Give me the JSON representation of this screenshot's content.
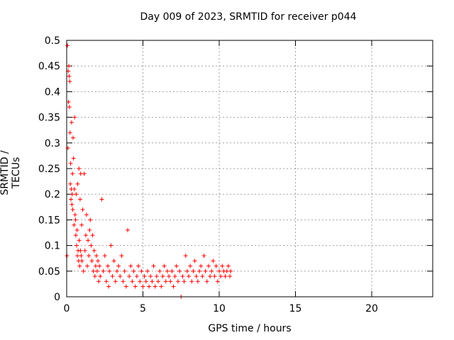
{
  "chart_data": {
    "type": "scatter",
    "title": "Day 009 of 2023, SRMTID for receiver p044",
    "xlabel": "GPS time / hours",
    "ylabel": "SRMTID / TECUs",
    "xlim": [
      0,
      24
    ],
    "ylim": [
      0,
      0.5
    ],
    "xticks": [
      0,
      5,
      10,
      15,
      20
    ],
    "yticks": [
      0,
      0.05,
      0.1,
      0.15,
      0.2,
      0.25,
      0.3,
      0.35,
      0.4,
      0.45,
      0.5
    ],
    "grid": true,
    "marker": "+",
    "color": "#ff0000",
    "series": [
      {
        "name": "SRMTID",
        "x": [
          0.02,
          0.05,
          0.08,
          0.1,
          0.12,
          0.14,
          0.16,
          0.18,
          0.2,
          0.22,
          0.24,
          0.26,
          0.28,
          0.3,
          0.32,
          0.34,
          0.36,
          0.38,
          0.4,
          0.42,
          0.45,
          0.48,
          0.5,
          0.52,
          0.55,
          0.58,
          0.6,
          0.62,
          0.65,
          0.68,
          0.7,
          0.72,
          0.75,
          0.78,
          0.8,
          0.82,
          0.85,
          0.88,
          0.9,
          0.92,
          0.95,
          0.98,
          1.0,
          1.05,
          1.1,
          1.15,
          1.2,
          1.25,
          1.3,
          1.35,
          1.4,
          1.45,
          1.5,
          1.55,
          1.6,
          1.65,
          1.7,
          1.75,
          1.8,
          1.85,
          1.9,
          1.95,
          2.0,
          2.05,
          2.1,
          2.15,
          2.2,
          2.3,
          2.4,
          2.5,
          2.6,
          2.7,
          2.75,
          2.8,
          2.9,
          3.0,
          3.1,
          3.2,
          3.3,
          3.4,
          3.5,
          3.6,
          3.7,
          3.8,
          3.9,
          4.0,
          4.1,
          4.2,
          4.3,
          4.4,
          4.5,
          4.6,
          4.7,
          4.8,
          4.9,
          5.0,
          5.1,
          5.2,
          5.3,
          5.4,
          5.5,
          5.6,
          5.7,
          5.8,
          5.9,
          6.0,
          6.1,
          6.2,
          6.3,
          6.4,
          6.5,
          6.6,
          6.7,
          6.8,
          6.9,
          7.0,
          7.1,
          7.2,
          7.3,
          7.4,
          7.5,
          7.6,
          7.7,
          7.8,
          7.9,
          8.0,
          8.1,
          8.2,
          8.3,
          8.4,
          8.5,
          8.6,
          8.7,
          8.8,
          8.9,
          9.0,
          9.1,
          9.2,
          9.3,
          9.4,
          9.5,
          9.6,
          9.7,
          9.8,
          9.9,
          10.0,
          10.1,
          10.2,
          10.3,
          10.4,
          10.5,
          10.6,
          10.7,
          10.75
        ],
        "y": [
          0.08,
          0.49,
          0.29,
          0.44,
          0.38,
          0.45,
          0.43,
          0.37,
          0.42,
          0.32,
          0.22,
          0.26,
          0.19,
          0.21,
          0.34,
          0.18,
          0.2,
          0.24,
          0.17,
          0.31,
          0.27,
          0.14,
          0.21,
          0.35,
          0.16,
          0.15,
          0.12,
          0.2,
          0.1,
          0.13,
          0.08,
          0.22,
          0.09,
          0.07,
          0.25,
          0.11,
          0.06,
          0.19,
          0.09,
          0.24,
          0.08,
          0.14,
          0.07,
          0.17,
          0.05,
          0.24,
          0.09,
          0.12,
          0.16,
          0.06,
          0.11,
          0.08,
          0.13,
          0.15,
          0.1,
          0.07,
          0.12,
          0.05,
          0.09,
          0.04,
          0.06,
          0.08,
          0.05,
          0.07,
          0.03,
          0.06,
          0.04,
          0.19,
          0.05,
          0.08,
          0.03,
          0.06,
          0.02,
          0.05,
          0.1,
          0.04,
          0.07,
          0.03,
          0.05,
          0.06,
          0.04,
          0.08,
          0.03,
          0.05,
          0.02,
          0.13,
          0.04,
          0.06,
          0.03,
          0.05,
          0.02,
          0.04,
          0.06,
          0.03,
          0.05,
          0.02,
          0.04,
          0.03,
          0.05,
          0.02,
          0.04,
          0.03,
          0.06,
          0.02,
          0.04,
          0.03,
          0.05,
          0.02,
          0.04,
          0.06,
          0.03,
          0.05,
          0.04,
          0.03,
          0.05,
          0.02,
          0.04,
          0.06,
          0.03,
          0.05,
          0.0,
          0.04,
          0.03,
          0.08,
          0.05,
          0.04,
          0.06,
          0.03,
          0.05,
          0.07,
          0.04,
          0.03,
          0.05,
          0.06,
          0.04,
          0.08,
          0.05,
          0.03,
          0.06,
          0.04,
          0.05,
          0.07,
          0.04,
          0.06,
          0.03,
          0.05,
          0.04,
          0.06,
          0.05,
          0.04,
          0.05,
          0.06,
          0.04,
          0.05
        ]
      }
    ]
  }
}
